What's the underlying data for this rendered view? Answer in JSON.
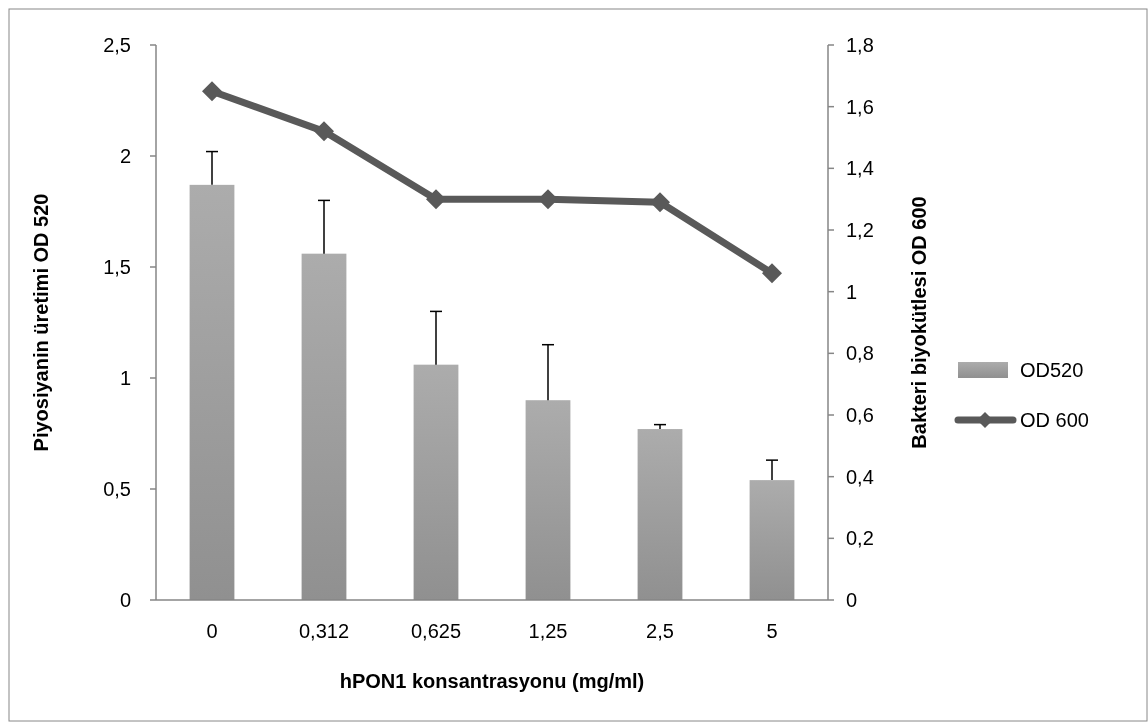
{
  "chart_data": {
    "type": "bar",
    "xlabel": "hPON1 konsantrasyonu (mg/ml)",
    "ylabel": "Piyosiyanin üretimi OD 520",
    "y2label": "Bakteri biyokütlesi OD 600",
    "categories": [
      "0",
      "0,312",
      "0,625",
      "1,25",
      "2,5",
      "5"
    ],
    "series": [
      {
        "name": "OD520",
        "color": "#a0a0a0",
        "values": [
          1.87,
          1.56,
          1.06,
          0.9,
          0.77,
          0.54
        ],
        "errors": [
          0.15,
          0.24,
          0.24,
          0.25,
          0.02,
          0.09
        ]
      },
      {
        "name": "OD 600",
        "type": "line",
        "axis": "y2",
        "color": "#595959",
        "marker": "diamond",
        "values": [
          1.65,
          1.52,
          1.3,
          1.3,
          1.29,
          1.06
        ]
      }
    ],
    "ylim": [
      0,
      2.5
    ],
    "yticks": [
      0,
      {
        "value": 0.5,
        "label": "0,5"
      },
      1,
      {
        "value": 1.5,
        "label": "1,5"
      },
      2,
      {
        "value": 2.5,
        "label": "2,5"
      }
    ],
    "y2lim": [
      0,
      1.8
    ],
    "y2ticks": [
      0,
      {
        "value": 0.2,
        "label": "0,2"
      },
      {
        "value": 0.4,
        "label": "0,4"
      },
      {
        "value": 0.6,
        "label": "0,6"
      },
      {
        "value": 0.8,
        "label": "0,8"
      },
      1,
      {
        "value": 1.2,
        "label": "1,2"
      },
      {
        "value": 1.4,
        "label": "1,4"
      },
      {
        "value": 1.6,
        "label": "1,6"
      },
      {
        "value": 1.8,
        "label": "1,8"
      }
    ],
    "grid": false,
    "legend": "right"
  }
}
